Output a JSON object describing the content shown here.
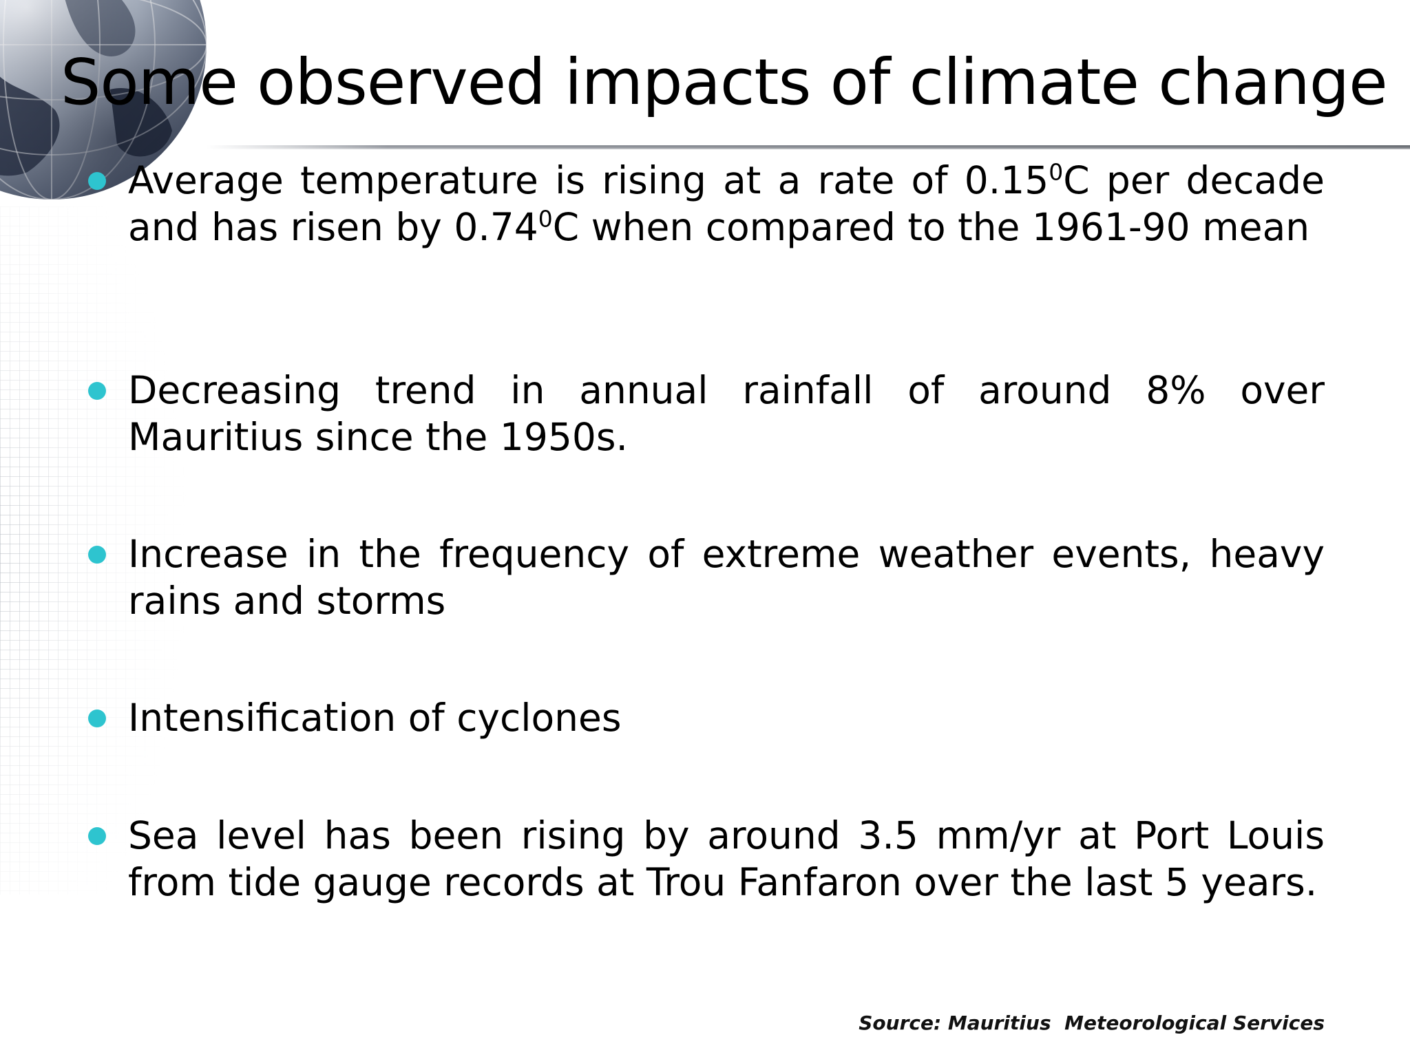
{
  "slide": {
    "title": "Some observed impacts of climate change",
    "bullet_color": "#2ec4cf",
    "bullets": [
      {
        "segments": [
          {
            "text": "Average temperature is rising at a rate of 0.15"
          },
          {
            "text": "0",
            "sup": true
          },
          {
            "text": "C per decade and has risen by 0.74"
          },
          {
            "text": "0",
            "sup": true
          },
          {
            "text": "C when compared to the 1961-90 mean"
          }
        ]
      },
      {
        "segments": [
          {
            "text": "Decreasing trend in annual rainfall of around 8% over Mauritius since the 1950s."
          }
        ]
      },
      {
        "segments": [
          {
            "text": "Increase in the frequency of extreme weather events, heavy rains and storms"
          }
        ]
      },
      {
        "segments": [
          {
            "text": "Intensification of cyclones"
          }
        ]
      },
      {
        "segments": [
          {
            "text": "Sea level has been rising by around 3.5 mm/yr at Port Louis from tide gauge records at Trou Fanfaron over the last 5 years."
          }
        ]
      }
    ],
    "source": "Source: Mauritius  Meteorological Services"
  }
}
